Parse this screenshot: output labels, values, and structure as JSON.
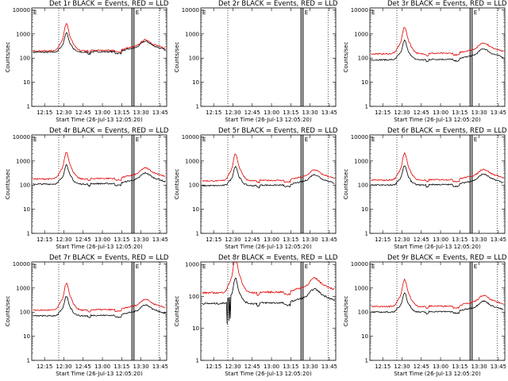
{
  "chart_data": {
    "type": "line",
    "panels": [
      {
        "title": "Det 1r  BLACK = Events, RED = LLD",
        "shape": "a",
        "base_black": 175,
        "base_red": 200
      },
      {
        "title": "Det 2r  BLACK = Events, RED = LLD",
        "shape": "empty"
      },
      {
        "title": "Det 3r  BLACK = Events, RED = LLD",
        "shape": "a",
        "base_black": 85,
        "base_red": 150
      },
      {
        "title": "Det 4r  BLACK = Events, RED = LLD",
        "shape": "a",
        "base_black": 110,
        "base_red": 180
      },
      {
        "title": "Det 5r  BLACK = Events, RED = LLD",
        "shape": "a",
        "base_black": 95,
        "base_red": 150
      },
      {
        "title": "Det 6r  BLACK = Events, RED = LLD",
        "shape": "a",
        "base_black": 100,
        "base_red": 160
      },
      {
        "title": "Det 7r  BLACK = Events, RED = LLD",
        "shape": "a",
        "base_black": 70,
        "base_red": 120
      },
      {
        "title": "Det 8r  BLACK = Events, RED = LLD",
        "shape": "b",
        "base_black": 60,
        "base_red": 130
      },
      {
        "title": "Det 9r  BLACK = Events, RED = LLD",
        "shape": "a",
        "base_black": 100,
        "base_red": 170
      }
    ],
    "xlabel": "Start Time (26-Jul-13 12:05:20)",
    "ylabel": "Counts/sec",
    "x_ticks": [
      "12:15",
      "12:30",
      "12:45",
      "13:00",
      "13:15",
      "13:30",
      "13:45"
    ],
    "x_tick_minutes": [
      10,
      25,
      40,
      55,
      70,
      85,
      100
    ],
    "x_range_minutes": [
      0,
      105
    ],
    "yscale": "log",
    "y_ticks_full": [
      "1",
      "10",
      "100",
      "1000",
      "10000"
    ],
    "y_ticks_b": [
      "1",
      "10",
      "100",
      "1000"
    ],
    "ylim_full": [
      1,
      12000
    ],
    "ylim_b": [
      1,
      1200
    ],
    "series_colors": {
      "events": "#000000",
      "lld": "#e00000"
    },
    "dotted_lines_min": [
      21,
      99
    ],
    "solid_lines_min": [
      78,
      79.5
    ],
    "flag_label": "E"
  }
}
